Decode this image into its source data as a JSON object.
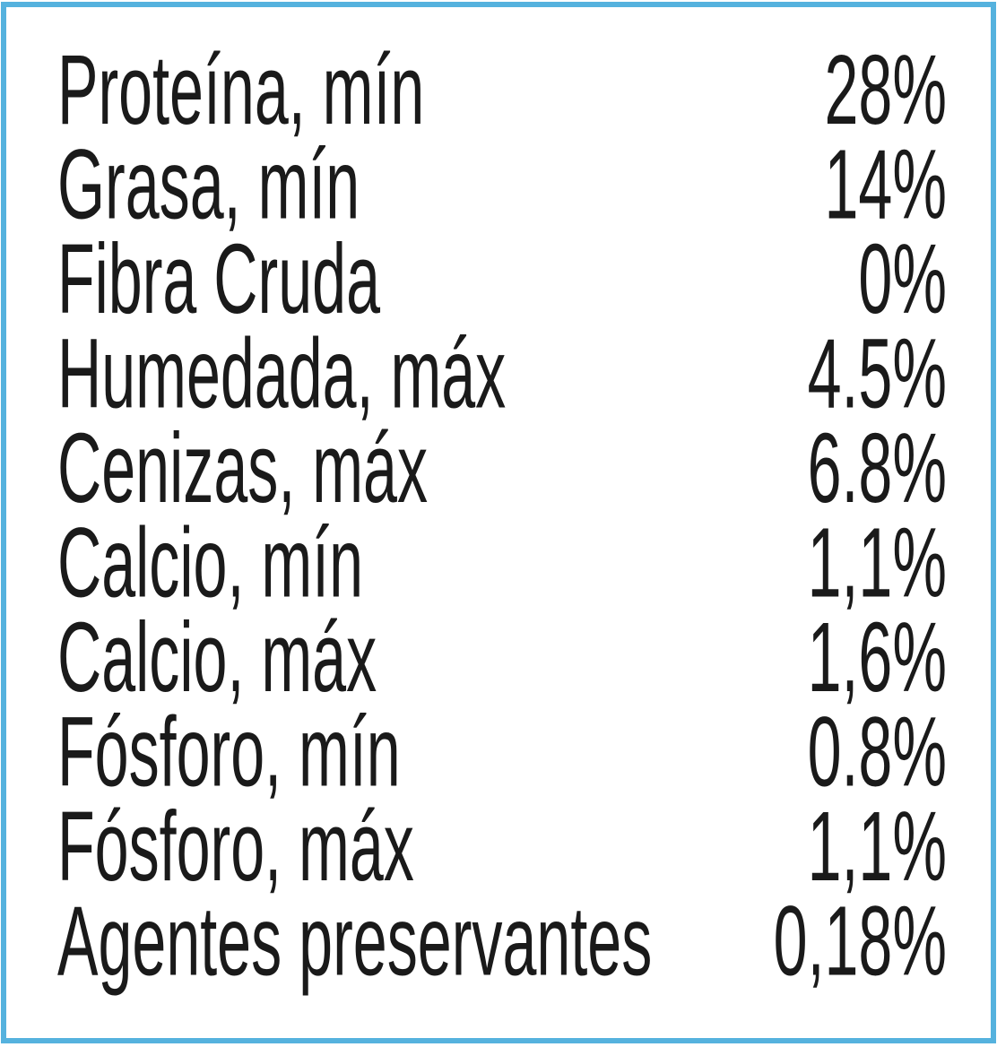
{
  "table": {
    "rows": [
      [
        "Proteína, mín",
        "28%"
      ],
      [
        "Grasa, mín",
        "14%"
      ],
      [
        "Fibra Cruda",
        "0%"
      ],
      [
        "Humedada, máx",
        "4.5%"
      ],
      [
        "Cenizas, máx",
        "6.8%"
      ],
      [
        "Calcio, mín",
        "1,1%"
      ],
      [
        "Calcio, máx",
        "1,6%"
      ],
      [
        "Fósforo, mín",
        "0.8%"
      ],
      [
        "Fósforo, máx",
        "1,1%"
      ],
      [
        "Agentes preservantes",
        "0,18%"
      ]
    ]
  }
}
